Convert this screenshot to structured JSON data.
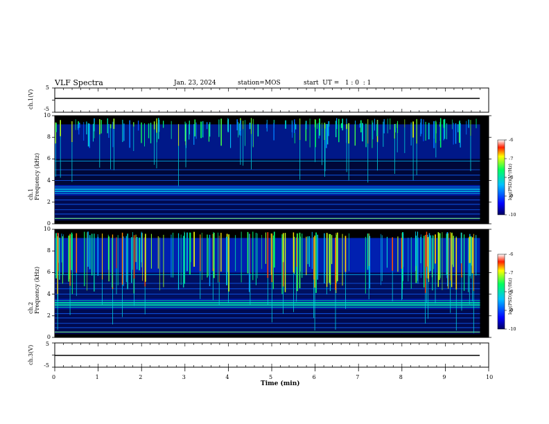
{
  "header": {
    "title": "VLF Spectra",
    "date": "Jan. 23, 2024",
    "station": "station=MOS",
    "start_ut": "start  UT =   1 : 0  : 1"
  },
  "chart_data": [
    {
      "type": "line",
      "panel": "ch.1 waveform",
      "ylabel": "ch.1(V)",
      "ylim": [
        -5,
        5
      ],
      "yticks": [
        "5",
        "-5"
      ],
      "x": [
        0,
        9.8
      ],
      "y": [
        0,
        0
      ],
      "xlim": [
        0,
        10
      ]
    },
    {
      "type": "heatmap",
      "panel": "ch.1 spectrogram",
      "ylabel": "ch.1\nFrequency (kHz)",
      "ylim": [
        0,
        10
      ],
      "yticks": [
        "0",
        "2",
        "4",
        "6",
        "8",
        "10"
      ],
      "xlim": [
        0,
        10
      ],
      "colorbar": {
        "label": "log(PSD)(V²/Hz)",
        "range": [
          -10,
          -6
        ],
        "ticks": [
          "-6",
          "-7",
          "-8",
          "-9",
          "-10"
        ]
      }
    },
    {
      "type": "heatmap",
      "panel": "ch.2 spectrogram",
      "ylabel": "ch.2\nFrequency (kHz)",
      "ylim": [
        0,
        10
      ],
      "yticks": [
        "0",
        "2",
        "4",
        "6",
        "8",
        "10"
      ],
      "xlim": [
        0,
        10
      ],
      "colorbar": {
        "label": "log(PSD)(V²/Hz)",
        "range": [
          -10,
          -6
        ],
        "ticks": [
          "-6",
          "-7",
          "-8",
          "-9",
          "-10"
        ]
      }
    },
    {
      "type": "line",
      "panel": "ch.3 waveform",
      "ylabel": "ch.3(V)",
      "ylim": [
        -5,
        5
      ],
      "yticks": [
        "5",
        "-5"
      ],
      "x": [
        0,
        9.8
      ],
      "y": [
        0,
        0
      ],
      "xlim": [
        0,
        10
      ]
    }
  ],
  "x_axis": {
    "label": "Time (min)",
    "ticks": [
      "0",
      "1",
      "2",
      "3",
      "4",
      "5",
      "6",
      "7",
      "8",
      "9",
      "10"
    ]
  },
  "colors": {
    "background": "#000000",
    "low": "#0000ff",
    "mid": "#00ff80",
    "high": "#ff0000"
  }
}
